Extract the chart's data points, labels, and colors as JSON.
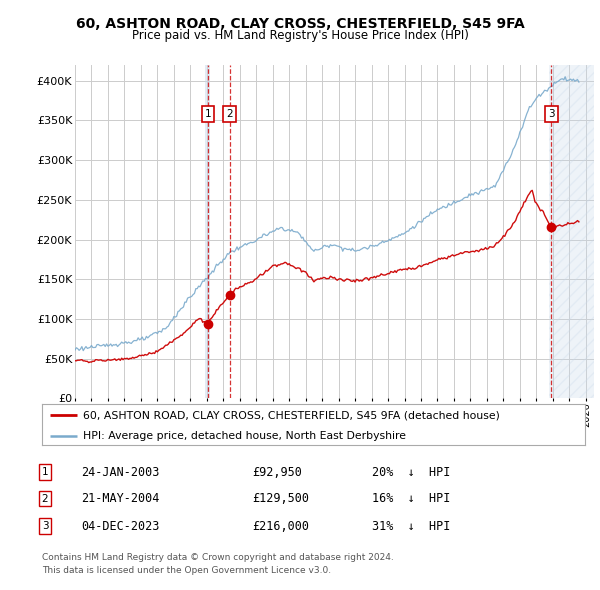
{
  "title1": "60, ASHTON ROAD, CLAY CROSS, CHESTERFIELD, S45 9FA",
  "title2": "Price paid vs. HM Land Registry's House Price Index (HPI)",
  "background_color": "#ffffff",
  "plot_bg_color": "#ffffff",
  "grid_color": "#cccccc",
  "red_color": "#cc0000",
  "blue_color": "#7aaacc",
  "shade_color": "#c8d8ea",
  "hatch_color": "#c8d8ea",
  "transactions": [
    {
      "num": 1,
      "date": "24-JAN-2003",
      "price": 92950,
      "pct": "20%",
      "x_year": 2003.07
    },
    {
      "num": 2,
      "date": "21-MAY-2004",
      "price": 129500,
      "pct": "16%",
      "x_year": 2004.38
    },
    {
      "num": 3,
      "date": "04-DEC-2023",
      "price": 216000,
      "pct": "31%",
      "x_year": 2023.92
    }
  ],
  "legend_line1": "60, ASHTON ROAD, CLAY CROSS, CHESTERFIELD, S45 9FA (detached house)",
  "legend_line2": "HPI: Average price, detached house, North East Derbyshire",
  "footnote1": "Contains HM Land Registry data © Crown copyright and database right 2024.",
  "footnote2": "This data is licensed under the Open Government Licence v3.0.",
  "xmin": 1995.0,
  "xmax": 2026.5,
  "ymin": 0,
  "ymax": 420000,
  "yticks": [
    0,
    50000,
    100000,
    150000,
    200000,
    250000,
    300000,
    350000,
    400000
  ],
  "ytick_labels": [
    "£0",
    "£50K",
    "£100K",
    "£150K",
    "£200K",
    "£250K",
    "£300K",
    "£350K",
    "£400K"
  ]
}
